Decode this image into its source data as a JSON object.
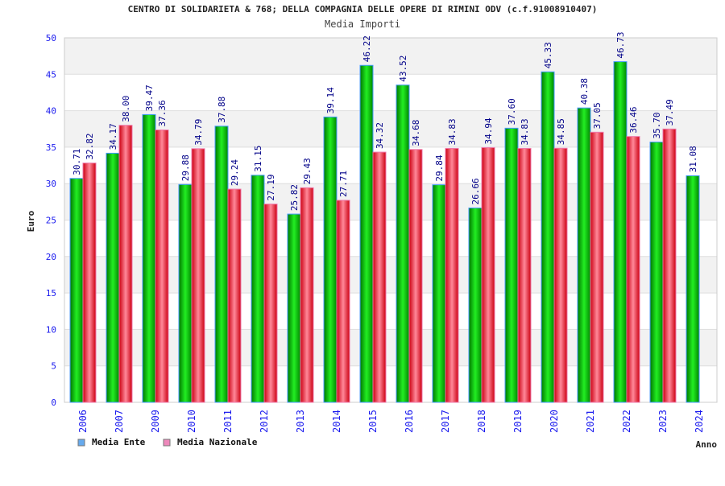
{
  "chart_data": {
    "type": "bar",
    "title": "CENTRO DI SOLIDARIETA &  768; DELLA COMPAGNIA DELLE OPERE DI RIMINI ODV (c.f.91008910407)",
    "subtitle": "Media Importi",
    "xlabel": "Anno",
    "ylabel": "Euro",
    "ylim": [
      0,
      50
    ],
    "yticks": [
      0,
      5,
      10,
      15,
      20,
      25,
      30,
      35,
      40,
      45,
      50
    ],
    "grid": true,
    "legend_position": "bottom-left",
    "categories": [
      "2006",
      "2007",
      "2009",
      "2010",
      "2011",
      "2012",
      "2013",
      "2014",
      "2015",
      "2016",
      "2017",
      "2018",
      "2019",
      "2020",
      "2021",
      "2022",
      "2023",
      "2024"
    ],
    "series": [
      {
        "name": "Media Ente",
        "color": "#00cc00",
        "legend_color": "#66aaee",
        "values": [
          30.71,
          34.17,
          39.47,
          29.88,
          37.88,
          31.15,
          25.82,
          39.14,
          46.22,
          43.52,
          29.84,
          26.66,
          37.6,
          45.33,
          40.38,
          46.73,
          35.7,
          31.08
        ],
        "labels": [
          "30.71",
          "34.17",
          "39.47",
          "29.88",
          "37.88",
          "31.15",
          "25.82",
          "39.14",
          "46.22",
          "43.52",
          "29.84",
          "26.66",
          "37.60",
          "45.33",
          "40.38",
          "46.73",
          "35.70",
          "31.08"
        ]
      },
      {
        "name": "Media Nazionale",
        "color": "#ee2233",
        "legend_color": "#ee88bb",
        "values": [
          32.82,
          38.0,
          37.36,
          34.79,
          29.24,
          27.19,
          29.43,
          27.71,
          34.32,
          34.68,
          34.83,
          34.94,
          34.83,
          34.85,
          37.05,
          36.46,
          37.49,
          null
        ],
        "labels": [
          "32.82",
          "38.00",
          "37.36",
          "34.79",
          "29.24",
          "27.19",
          "29.43",
          "27.71",
          "34.32",
          "34.68",
          "34.83",
          "34.94",
          "34.83",
          "34.85",
          "37.05",
          "36.46",
          "37.49",
          null
        ]
      }
    ]
  }
}
